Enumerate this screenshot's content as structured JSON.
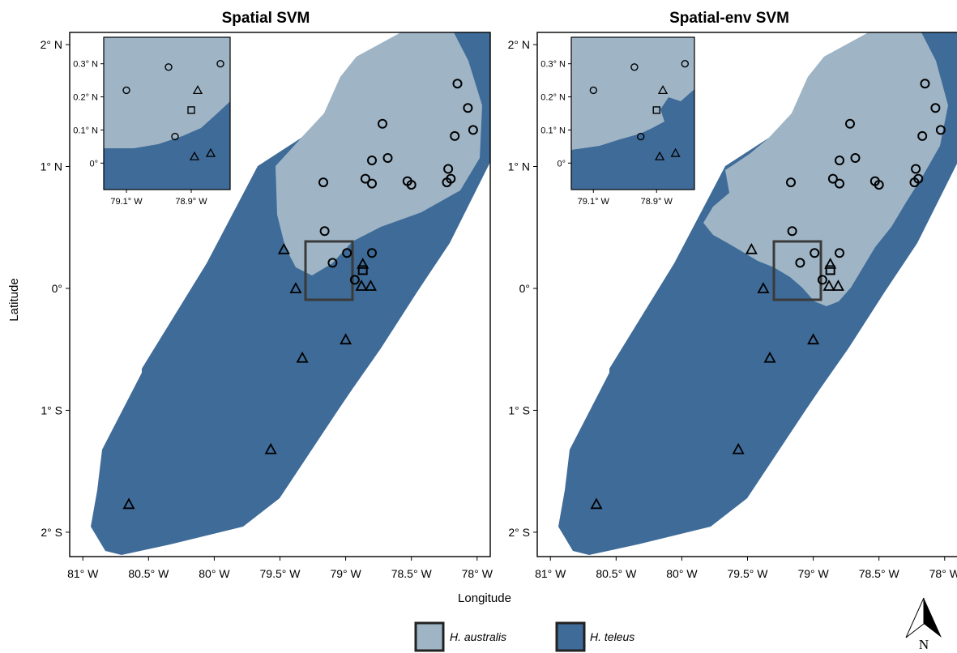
{
  "figure": {
    "xlabel": "Longitude",
    "ylabel": "Latitude",
    "colors": {
      "australis": "#9fb5c6",
      "teleus": "#3f6b98",
      "frame": "#000000",
      "inset_frame": "#3a3a3a"
    }
  },
  "chart_data": {
    "type": "map",
    "x_ticks": [
      "81° W",
      "80.5° W",
      "80° W",
      "79.5° W",
      "79° W",
      "78.5° W",
      "78° W"
    ],
    "x_tick_values": [
      -81,
      -80.5,
      -80,
      -79.5,
      -79,
      -78.5,
      -78
    ],
    "y_ticks": [
      "2° N",
      "1° N",
      "0°",
      "1° S",
      "2° S"
    ],
    "y_tick_values": [
      2,
      1,
      0,
      -1,
      -2
    ],
    "xlim": [
      -81.1,
      -77.9
    ],
    "ylim": [
      -2.2,
      2.1
    ],
    "panels": [
      {
        "title": "Spatial SVM"
      },
      {
        "title": "Spatial-env SVM"
      }
    ],
    "inset": {
      "x_ticks": [
        "79.1° W",
        "78.9° W"
      ],
      "x_tick_values": [
        -79.1,
        -78.9
      ],
      "y_ticks": [
        "0.3° N",
        "0.2° N",
        "0.1° N",
        "0°"
      ],
      "y_tick_values": [
        0.3,
        0.2,
        0.1,
        0
      ],
      "xlim": [
        -79.17,
        -78.78
      ],
      "ylim": [
        -0.08,
        0.38
      ]
    },
    "legend": [
      {
        "key": "australis",
        "label": "H. australis",
        "color": "#9fb5c6"
      },
      {
        "key": "teleus",
        "label": "H. teleus",
        "color": "#3f6b98"
      }
    ],
    "points_australis": [
      [
        -78.15,
        1.68
      ],
      [
        -78.07,
        1.48
      ],
      [
        -78.03,
        1.3
      ],
      [
        -78.17,
        1.25
      ],
      [
        -78.22,
        0.98
      ],
      [
        -78.2,
        0.9
      ],
      [
        -78.23,
        0.87
      ],
      [
        -78.53,
        0.88
      ],
      [
        -78.5,
        0.85
      ],
      [
        -78.68,
        1.07
      ],
      [
        -78.8,
        1.05
      ],
      [
        -78.85,
        0.9
      ],
      [
        -78.8,
        0.86
      ],
      [
        -78.72,
        1.35
      ],
      [
        -79.17,
        0.87
      ],
      [
        -79.16,
        0.47
      ],
      [
        -79.1,
        0.21
      ],
      [
        -78.99,
        0.29
      ],
      [
        -78.8,
        0.29
      ],
      [
        -78.93,
        0.07
      ]
    ],
    "points_teleus": [
      [
        -79.47,
        0.32
      ],
      [
        -79.38,
        0.0
      ],
      [
        -79.33,
        -0.57
      ],
      [
        -79.0,
        -0.42
      ],
      [
        -79.57,
        -1.32
      ],
      [
        -80.65,
        -1.77
      ],
      [
        -78.87,
        0.2
      ],
      [
        -78.88,
        0.02
      ],
      [
        -78.81,
        0.02
      ]
    ],
    "point_square": [
      -78.87,
      0.15
    ],
    "inset_points_australis": [
      [
        -79.1,
        0.22
      ],
      [
        -78.97,
        0.29
      ],
      [
        -78.81,
        0.3
      ],
      [
        -78.95,
        0.08
      ]
    ],
    "inset_points_teleus": [
      [
        -78.88,
        0.22
      ],
      [
        -78.89,
        0.02
      ],
      [
        -78.84,
        0.03
      ]
    ],
    "inset_square": [
      -78.9,
      0.16
    ]
  },
  "north_arrow": {
    "label": "N"
  }
}
